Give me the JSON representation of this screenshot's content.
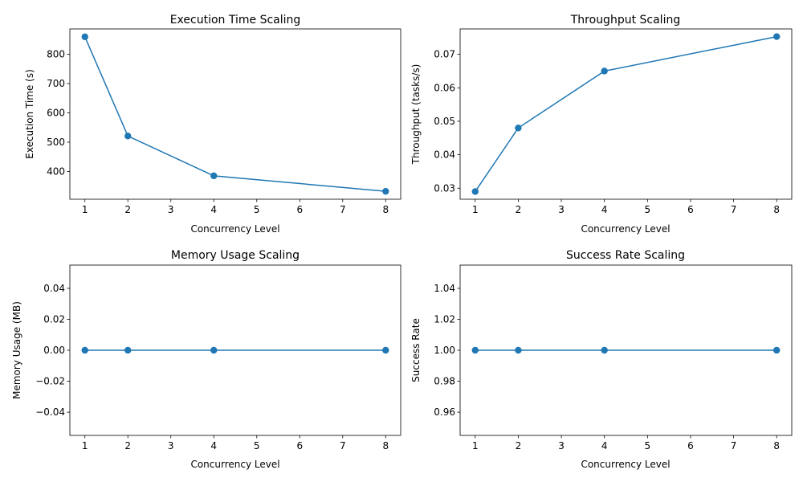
{
  "chart_data": [
    {
      "type": "line",
      "title": "Execution Time Scaling",
      "xlabel": "Concurrency Level",
      "ylabel": "Execution Time (s)",
      "x": [
        1,
        2,
        4,
        8
      ],
      "series": [
        {
          "values": [
            860,
            521,
            385,
            332
          ],
          "color": "#1f77b4"
        }
      ],
      "xlim": [
        0.65,
        8.35
      ],
      "ylim": [
        305,
        887
      ],
      "xticks": [
        1,
        2,
        3,
        4,
        5,
        6,
        7,
        8
      ],
      "yticks": [
        400,
        500,
        600,
        700,
        800
      ],
      "yticklabels": [
        "400",
        "500",
        "600",
        "700",
        "800"
      ],
      "grid": false,
      "marker": "circle"
    },
    {
      "type": "line",
      "title": "Throughput Scaling",
      "xlabel": "Concurrency Level",
      "ylabel": "Throughput (tasks/s)",
      "x": [
        1,
        2,
        4,
        8
      ],
      "series": [
        {
          "values": [
            0.029,
            0.048,
            0.065,
            0.0753
          ],
          "color": "#1f77b4"
        }
      ],
      "xlim": [
        0.65,
        8.35
      ],
      "ylim": [
        0.0267,
        0.0776
      ],
      "xticks": [
        1,
        2,
        3,
        4,
        5,
        6,
        7,
        8
      ],
      "yticks": [
        0.03,
        0.04,
        0.05,
        0.06,
        0.07
      ],
      "yticklabels": [
        "0.03",
        "0.04",
        "0.05",
        "0.06",
        "0.07"
      ],
      "grid": false,
      "marker": "circle"
    },
    {
      "type": "line",
      "title": "Memory Usage Scaling",
      "xlabel": "Concurrency Level",
      "ylabel": "Memory Usage (MB)",
      "x": [
        1,
        2,
        4,
        8
      ],
      "series": [
        {
          "values": [
            0,
            0,
            0,
            0
          ],
          "color": "#1f77b4"
        }
      ],
      "xlim": [
        0.65,
        8.35
      ],
      "ylim": [
        -0.055,
        0.055
      ],
      "xticks": [
        1,
        2,
        3,
        4,
        5,
        6,
        7,
        8
      ],
      "yticks": [
        -0.04,
        -0.02,
        0.0,
        0.02,
        0.04
      ],
      "yticklabels": [
        "−0.04",
        "−0.02",
        "0.00",
        "0.02",
        "0.04"
      ],
      "grid": false,
      "marker": "circle"
    },
    {
      "type": "line",
      "title": "Success Rate Scaling",
      "xlabel": "Concurrency Level",
      "ylabel": "Success Rate",
      "x": [
        1,
        2,
        4,
        8
      ],
      "series": [
        {
          "values": [
            1,
            1,
            1,
            1
          ],
          "color": "#1f77b4"
        }
      ],
      "xlim": [
        0.65,
        8.35
      ],
      "ylim": [
        0.945,
        1.055
      ],
      "xticks": [
        1,
        2,
        3,
        4,
        5,
        6,
        7,
        8
      ],
      "yticks": [
        0.96,
        0.98,
        1.0,
        1.02,
        1.04
      ],
      "yticklabels": [
        "0.96",
        "0.98",
        "1.00",
        "1.02",
        "1.04"
      ],
      "grid": false,
      "marker": "circle"
    }
  ]
}
